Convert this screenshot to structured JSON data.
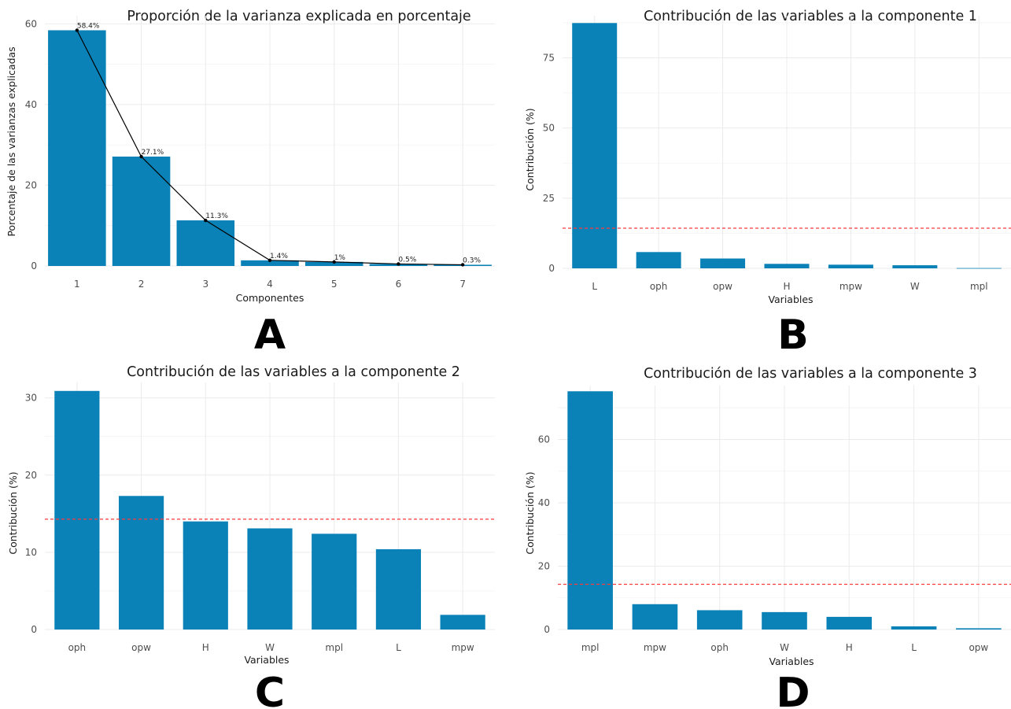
{
  "chart_data": [
    {
      "panel": "A",
      "type": "bar",
      "title": "Proporción de la varianza explicada en porcentaje",
      "xlabel": "Componentes",
      "ylabel": "Porcentaje de las varianzas explicadas",
      "categories": [
        "1",
        "2",
        "3",
        "4",
        "5",
        "6",
        "7"
      ],
      "values": [
        58.4,
        27.1,
        11.3,
        1.4,
        1.0,
        0.5,
        0.3
      ],
      "data_labels": [
        "58.4%",
        "27.1%",
        "11.3%",
        "1.4%",
        "1%",
        "0.5%",
        "0.3%"
      ],
      "ylim": [
        0,
        62
      ],
      "yticks": [
        0,
        20,
        40,
        60
      ],
      "line_overlay": true,
      "bar_color": "#0a82b7",
      "grid": true
    },
    {
      "panel": "B",
      "type": "bar",
      "title": "Contribución de las variables a la componente 1",
      "xlabel": "Variables",
      "ylabel": "Contribución (%)",
      "categories": [
        "L",
        "oph",
        "opw",
        "H",
        "mpw",
        "W",
        "mpl"
      ],
      "values": [
        87.4,
        5.8,
        3.5,
        1.6,
        1.3,
        1.1,
        0.1
      ],
      "ylim": [
        0,
        90
      ],
      "yticks": [
        0,
        25,
        50,
        75
      ],
      "reference_line": 14.29,
      "reference_color": "#ff3b3b",
      "bar_color": "#0a82b7",
      "grid": true
    },
    {
      "panel": "C",
      "type": "bar",
      "title": "Contribución de las variables a la componente 2",
      "xlabel": "Variables",
      "ylabel": "Contribución (%)",
      "categories": [
        "oph",
        "opw",
        "H",
        "W",
        "mpl",
        "L",
        "mpw"
      ],
      "values": [
        30.9,
        17.3,
        14.0,
        13.1,
        12.4,
        10.4,
        1.9
      ],
      "ylim": [
        0,
        32
      ],
      "yticks": [
        0,
        10,
        20,
        30
      ],
      "reference_line": 14.29,
      "reference_color": "#ff3b3b",
      "bar_color": "#0a82b7",
      "grid": true
    },
    {
      "panel": "D",
      "type": "bar",
      "title": "Contribución de las variables a la componente 3",
      "xlabel": "Variables",
      "ylabel": "Contribución (%)",
      "categories": [
        "mpl",
        "mpw",
        "oph",
        "W",
        "H",
        "L",
        "opw"
      ],
      "values": [
        75.2,
        8.0,
        6.1,
        5.5,
        4.0,
        1.0,
        0.4
      ],
      "ylim": [
        0,
        77
      ],
      "yticks": [
        0,
        20,
        40,
        60
      ],
      "reference_line": 14.29,
      "reference_color": "#ff3b3b",
      "bar_color": "#0a82b7",
      "grid": true
    }
  ],
  "panel_labels": [
    "A",
    "B",
    "C",
    "D"
  ]
}
